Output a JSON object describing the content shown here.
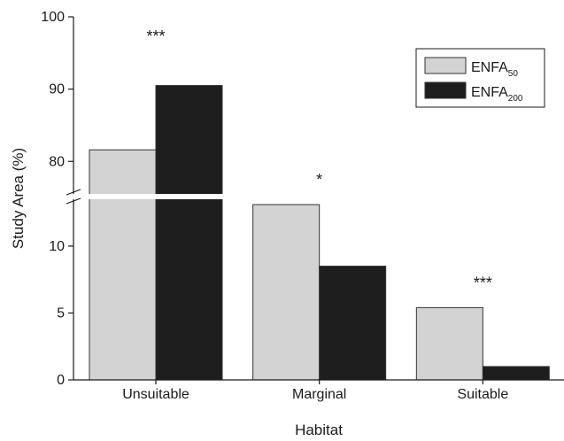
{
  "chart_data": {
    "type": "bar",
    "xlabel": "Habitat",
    "ylabel": "Study Area (%)",
    "categories": [
      "Unsuitable",
      "Marginal",
      "Suitable"
    ],
    "series": [
      {
        "name": "ENFA",
        "name_sub": "50",
        "color": "#d3d3d3",
        "values": [
          81.6,
          13.1,
          5.4
        ]
      },
      {
        "name": "ENFA",
        "name_sub": "200",
        "color": "#1e1e1e",
        "values": [
          90.5,
          8.5,
          1.0
        ]
      }
    ],
    "significance": [
      "***",
      "*",
      "***"
    ],
    "y_lower": {
      "range": [
        0,
        13.5
      ],
      "ticks": [
        0,
        5,
        10
      ]
    },
    "y_upper": {
      "range": [
        75.5,
        100
      ],
      "ticks": [
        80,
        90,
        100
      ]
    },
    "axis_break": true,
    "grid": false,
    "legend_position": "top-right"
  }
}
